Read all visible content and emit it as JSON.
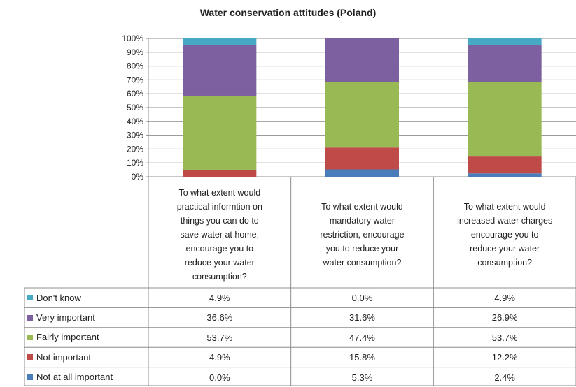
{
  "chart_data": {
    "type": "bar",
    "stacked": true,
    "percent": true,
    "title": "Water conservation attitudes (Poland)",
    "categories": [
      "To what extent would practical informtion on things you can do to save water at home, encourage you to reduce your water consumption?",
      "To what extent would mandatory water restriction, encourage you to reduce your water consumption?",
      "To what extent would increased water charges encourage you to reduce your water consumption?"
    ],
    "category_lines": [
      [
        "To what extent would",
        "practical informtion on",
        "things you can do to",
        "save water at home,",
        "encourage you to",
        "reduce your water",
        "consumption?"
      ],
      [
        "To what extent would",
        "mandatory water",
        "restriction, encourage",
        "you to reduce your",
        "water consumption?"
      ],
      [
        "To what extent would",
        "increased water charges",
        "encourage you to",
        "reduce your water",
        "consumption?"
      ]
    ],
    "ylim": [
      0,
      100
    ],
    "yticks": [
      "0%",
      "10%",
      "20%",
      "30%",
      "40%",
      "50%",
      "60%",
      "70%",
      "80%",
      "90%",
      "100%"
    ],
    "legend_position": "table-rows",
    "series": [
      {
        "name": "Not at all important",
        "color": "#4a7ebb",
        "values": [
          0.0,
          5.3,
          2.4
        ],
        "labels": [
          "0.0%",
          "5.3%",
          "2.4%"
        ]
      },
      {
        "name": "Not important",
        "color": "#be4b48",
        "values": [
          4.9,
          15.8,
          12.2
        ],
        "labels": [
          "4.9%",
          "15.8%",
          "12.2%"
        ]
      },
      {
        "name": "Fairly important",
        "color": "#98b954",
        "values": [
          53.7,
          47.4,
          53.7
        ],
        "labels": [
          "53.7%",
          "47.4%",
          "53.7%"
        ]
      },
      {
        "name": "Very important",
        "color": "#7d60a0",
        "values": [
          36.6,
          31.6,
          26.9
        ],
        "labels": [
          "36.6%",
          "31.6%",
          "26.9%"
        ]
      },
      {
        "name": "Don't know",
        "color": "#46aac5",
        "values": [
          4.9,
          0.0,
          4.9
        ],
        "labels": [
          "4.9%",
          "0.0%",
          "4.9%"
        ]
      }
    ],
    "table_row_order": [
      "Don't know",
      "Very important",
      "Fairly important",
      "Not important",
      "Not at all important"
    ]
  }
}
